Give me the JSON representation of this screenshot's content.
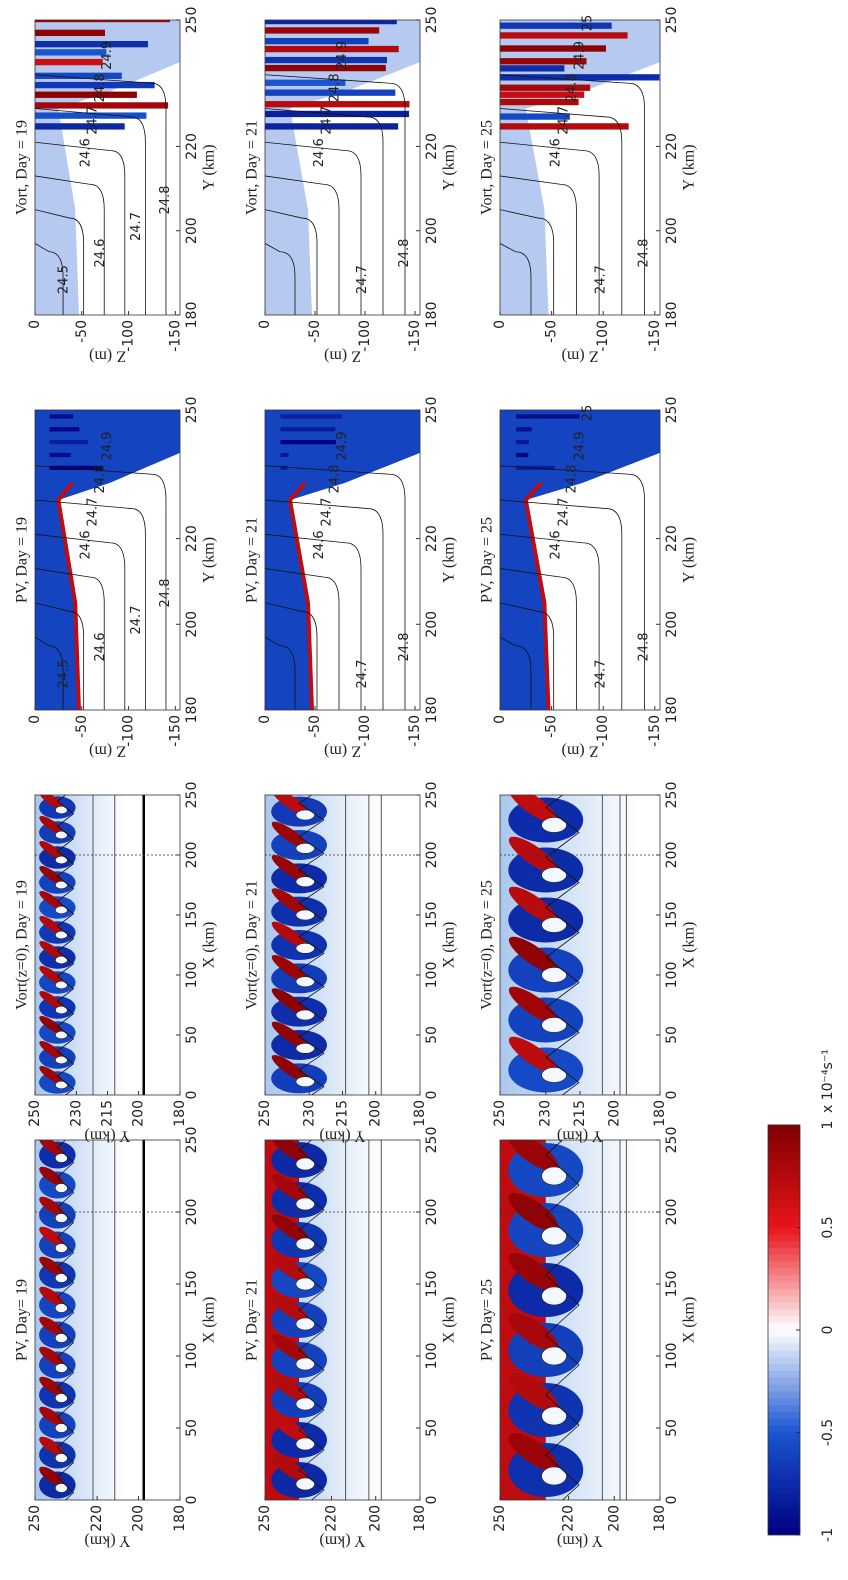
{
  "chart_data": [
    {
      "type": "heatmap",
      "title": "PV, Day= 19",
      "xlabel": "X (km)",
      "ylabel": "Y (km)",
      "xlim": [
        0,
        250
      ],
      "ylim": [
        180,
        250
      ],
      "xticks": [
        0,
        50,
        100,
        150,
        200,
        250
      ],
      "yticks": [
        250,
        220,
        200,
        180
      ]
    },
    {
      "type": "heatmap",
      "title": "Vort(z=0), Day = 19",
      "xlabel": "X (km)",
      "ylabel": "Y (km)",
      "xlim": [
        0,
        250
      ],
      "ylim": [
        180,
        250
      ],
      "xticks": [
        0,
        50,
        100,
        150,
        200,
        250
      ],
      "yticks": [
        250,
        230,
        215,
        200,
        180
      ]
    },
    {
      "type": "section",
      "field": "pv",
      "title": "PV, Day = 19",
      "xlabel": "Y (km)",
      "ylabel": "Z (m)",
      "xlim": [
        180,
        250
      ],
      "ylim": [
        -155,
        0
      ],
      "xticks": [
        180,
        200,
        220,
        250
      ],
      "yticks": [
        0,
        -50,
        -100,
        -150
      ],
      "contour_labels": [
        "24.5",
        "24.6",
        "24.7",
        "24.8",
        "24.6",
        "24.7",
        "24.8",
        "24.9"
      ]
    },
    {
      "type": "section",
      "field": "vort",
      "title": "Vort, Day = 19",
      "xlabel": "Y (km)",
      "ylabel": "Z (m)",
      "xlim": [
        180,
        250
      ],
      "ylim": [
        -155,
        0
      ],
      "xticks": [
        180,
        200,
        220,
        250
      ],
      "yticks": [
        0,
        -50,
        -100,
        -150
      ],
      "contour_labels": [
        "24.5",
        "24.6",
        "24.7",
        "24.8",
        "24.6",
        "24.7",
        "24.8",
        "24.9"
      ]
    },
    {
      "type": "heatmap",
      "title": "PV, Day= 21",
      "xlabel": "X (km)",
      "ylabel": "Y (km)",
      "xlim": [
        0,
        250
      ],
      "ylim": [
        180,
        250
      ],
      "xticks": [
        0,
        50,
        100,
        150,
        200,
        250
      ],
      "yticks": [
        250,
        220,
        200,
        180
      ]
    },
    {
      "type": "heatmap",
      "title": "Vort(z=0), Day = 21",
      "xlabel": "X (km)",
      "ylabel": "Y (km)",
      "xlim": [
        0,
        250
      ],
      "ylim": [
        180,
        250
      ],
      "xticks": [
        0,
        50,
        100,
        150,
        200,
        250
      ],
      "yticks": [
        250,
        230,
        215,
        200,
        180
      ]
    },
    {
      "type": "section",
      "field": "pv",
      "title": "PV, Day = 21",
      "xlabel": "Y (km)",
      "ylabel": "Z (m)",
      "xlim": [
        180,
        250
      ],
      "ylim": [
        -155,
        0
      ],
      "xticks": [
        180,
        200,
        220,
        250
      ],
      "yticks": [
        0,
        -50,
        -100,
        -150
      ],
      "contour_labels": [
        "24.7",
        "24.8",
        "24.6",
        "24.7",
        "24.8",
        "24.9"
      ]
    },
    {
      "type": "section",
      "field": "vort",
      "title": "Vort, Day = 21",
      "xlabel": "Y (km)",
      "ylabel": "Z (m)",
      "xlim": [
        180,
        250
      ],
      "ylim": [
        -155,
        0
      ],
      "xticks": [
        180,
        200,
        220,
        250
      ],
      "yticks": [
        0,
        -50,
        -100,
        -150
      ],
      "contour_labels": [
        "24.7",
        "24.8",
        "24.6",
        "24.7",
        "24.8",
        "24.9"
      ]
    },
    {
      "type": "heatmap",
      "title": "PV, Day= 25",
      "xlabel": "X (km)",
      "ylabel": "Y (km)",
      "xlim": [
        0,
        250
      ],
      "ylim": [
        180,
        250
      ],
      "xticks": [
        0,
        50,
        100,
        150,
        200,
        250
      ],
      "yticks": [
        250,
        220,
        200,
        180
      ]
    },
    {
      "type": "heatmap",
      "title": "Vort(z=0), Day = 25",
      "xlabel": "X (km)",
      "ylabel": "Y (km)",
      "xlim": [
        0,
        250
      ],
      "ylim": [
        180,
        250
      ],
      "xticks": [
        0,
        50,
        100,
        150,
        200,
        250
      ],
      "yticks": [
        250,
        230,
        215,
        200,
        180
      ]
    },
    {
      "type": "section",
      "field": "pv",
      "title": "PV, Day = 25",
      "xlabel": "Y (km)",
      "ylabel": "Z (m)",
      "xlim": [
        180,
        250
      ],
      "ylim": [
        -155,
        0
      ],
      "xticks": [
        180,
        200,
        220,
        250
      ],
      "yticks": [
        0,
        -50,
        -100,
        -150
      ],
      "contour_labels": [
        "24.7",
        "24.8",
        "24.6",
        "24.7",
        "24.8",
        "24.9",
        "25"
      ]
    },
    {
      "type": "section",
      "field": "vort",
      "title": "Vort, Day = 25",
      "xlabel": "Y (km)",
      "ylabel": "Z (m)",
      "xlim": [
        180,
        250
      ],
      "ylim": [
        -155,
        0
      ],
      "xticks": [
        180,
        200,
        220,
        250
      ],
      "yticks": [
        0,
        -50,
        -100,
        -150
      ],
      "contour_labels": [
        "24.7",
        "24.8",
        "24.6",
        "24.7",
        "24.8",
        "24.9",
        "25"
      ]
    },
    {
      "type": "colorbar",
      "lim": [
        -1,
        1
      ],
      "ticks": [
        -1,
        -0.5,
        0,
        0.5,
        1
      ],
      "label": "x 10⁻⁴s⁻¹",
      "colors": [
        "#00007f",
        "#1a55d0",
        "#ffffff",
        "#e8141a",
        "#7f0000"
      ]
    }
  ]
}
